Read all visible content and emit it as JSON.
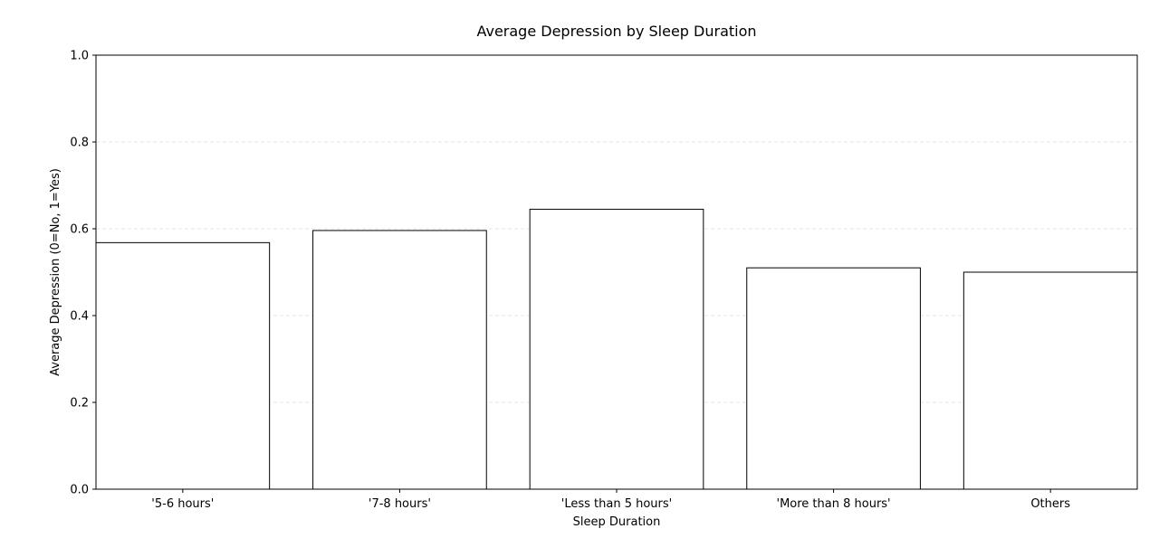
{
  "chart_data": {
    "type": "bar",
    "title": "Average Depression by Sleep Duration",
    "xlabel": "Sleep Duration",
    "ylabel": "Average Depression (0=No, 1=Yes)",
    "categories": [
      "'5-6 hours'",
      "'7-8 hours'",
      "'Less than 5 hours'",
      "'More than 8 hours'",
      "Others"
    ],
    "values": [
      0.568,
      0.596,
      0.645,
      0.51,
      0.5
    ],
    "ylim": [
      0,
      1.0
    ],
    "yticks": [
      0.0,
      0.2,
      0.4,
      0.6,
      0.8,
      1.0
    ],
    "ytick_labels": [
      "0.0",
      "0.2",
      "0.4",
      "0.6",
      "0.8",
      "1.0"
    ],
    "grid": {
      "y": true,
      "x": false,
      "style": "dashed"
    },
    "legend": "none",
    "colors": {
      "bar_fill": "#ffffff",
      "bar_edge": "#000000",
      "grid": "#e6e6e6",
      "axis": "#000000"
    }
  }
}
